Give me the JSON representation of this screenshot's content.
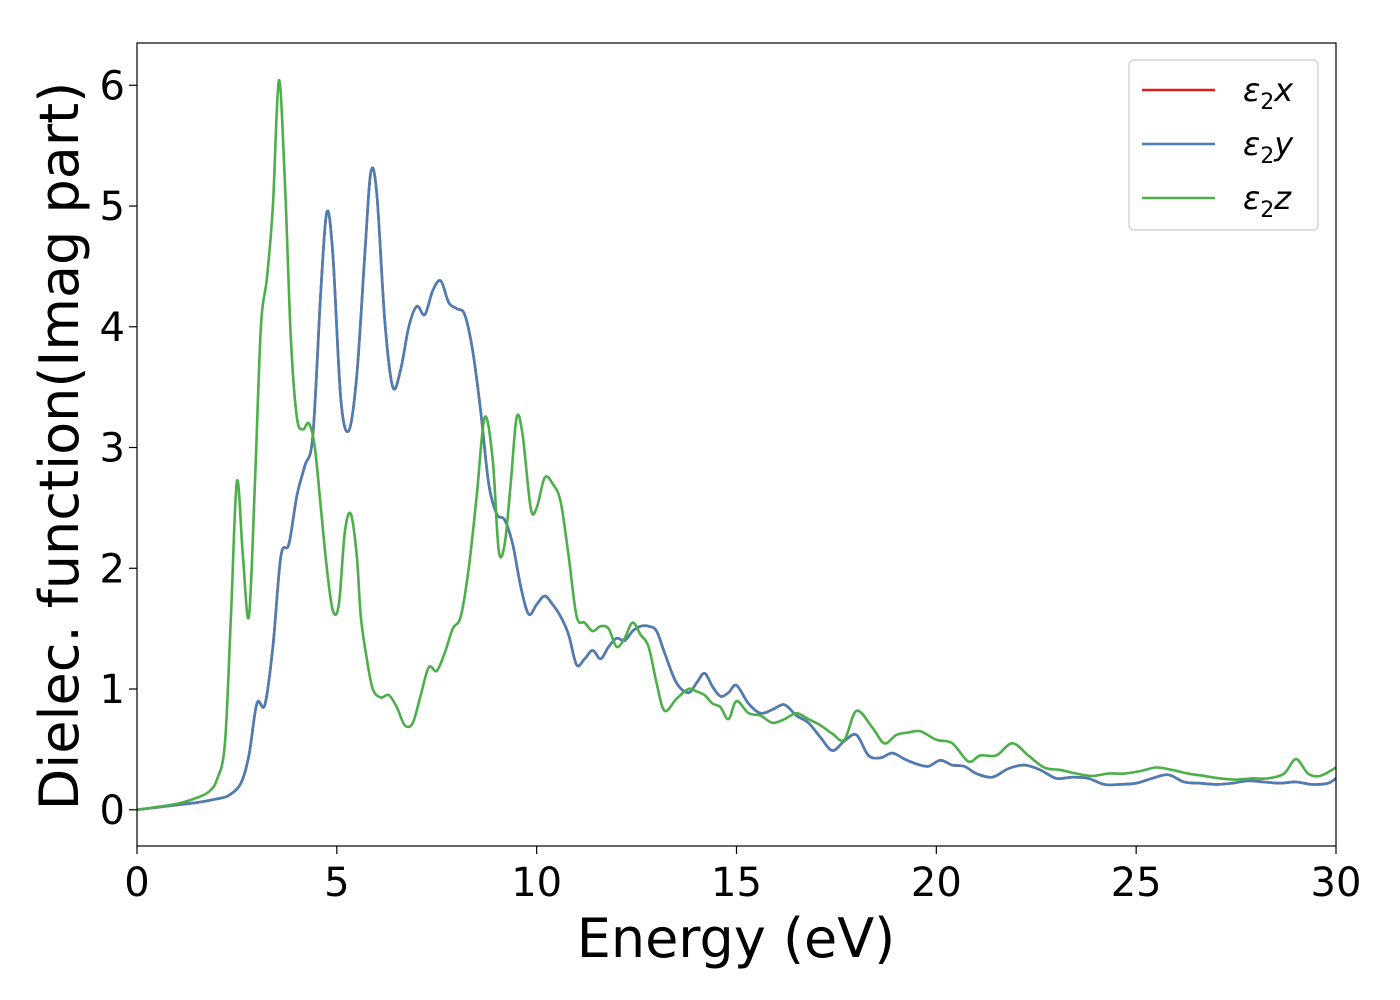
{
  "chart_data": {
    "type": "line",
    "xlabel": "Energy (eV)",
    "ylabel": "Dielec. function(Imag part)",
    "xlim": [
      0,
      30
    ],
    "ylim": [
      -0.3,
      6.35
    ],
    "x_ticks": [
      0,
      5,
      10,
      15,
      20,
      25,
      30
    ],
    "y_ticks": [
      0,
      1,
      2,
      3,
      4,
      5,
      6
    ],
    "grid": false,
    "legend_position": "top-right",
    "series": [
      {
        "name": "ε2x",
        "symbol": "ε",
        "sub": "2",
        "axis": "x",
        "color": "#e41a1c",
        "x": [
          0,
          1,
          1.5,
          2,
          2.3,
          2.6,
          2.8,
          3.0,
          3.2,
          3.4,
          3.6,
          3.8,
          4.0,
          4.2,
          4.4,
          4.6,
          4.75,
          4.9,
          5.1,
          5.3,
          5.5,
          5.7,
          5.85,
          6.0,
          6.2,
          6.4,
          6.6,
          6.8,
          7.0,
          7.2,
          7.4,
          7.6,
          7.8,
          8.0,
          8.2,
          8.4,
          8.6,
          8.8,
          9.0,
          9.2,
          9.4,
          9.6,
          9.8,
          10.0,
          10.2,
          10.4,
          10.6,
          10.8,
          11.0,
          11.2,
          11.4,
          11.6,
          11.8,
          12.0,
          12.2,
          12.4,
          12.6,
          12.8,
          13.0,
          13.2,
          13.5,
          13.8,
          14.0,
          14.2,
          14.4,
          14.6,
          14.8,
          15.0,
          15.3,
          15.6,
          15.9,
          16.2,
          16.5,
          16.8,
          17.1,
          17.4,
          17.7,
          18.0,
          18.3,
          18.6,
          18.9,
          19.2,
          19.5,
          19.8,
          20.1,
          20.4,
          20.7,
          21.0,
          21.4,
          21.8,
          22.2,
          22.6,
          23.0,
          23.4,
          23.8,
          24.2,
          24.6,
          25.0,
          25.4,
          25.8,
          26.2,
          26.6,
          27.0,
          27.4,
          27.8,
          28.2,
          28.6,
          29.0,
          29.4,
          29.8,
          30.0
        ],
        "values": [
          0,
          0.04,
          0.06,
          0.09,
          0.12,
          0.22,
          0.45,
          0.88,
          0.87,
          1.35,
          2.1,
          2.2,
          2.6,
          2.85,
          3.1,
          4.3,
          4.95,
          4.6,
          3.4,
          3.14,
          3.6,
          4.6,
          5.28,
          5.1,
          4.05,
          3.5,
          3.65,
          4.0,
          4.17,
          4.1,
          4.3,
          4.38,
          4.2,
          4.15,
          4.1,
          3.8,
          3.3,
          2.7,
          2.45,
          2.4,
          2.2,
          1.85,
          1.62,
          1.7,
          1.77,
          1.7,
          1.6,
          1.45,
          1.2,
          1.25,
          1.32,
          1.25,
          1.35,
          1.42,
          1.4,
          1.48,
          1.52,
          1.52,
          1.48,
          1.3,
          1.05,
          0.97,
          1.05,
          1.13,
          1.02,
          0.94,
          0.97,
          1.03,
          0.88,
          0.8,
          0.83,
          0.87,
          0.78,
          0.72,
          0.6,
          0.49,
          0.57,
          0.62,
          0.45,
          0.43,
          0.47,
          0.42,
          0.38,
          0.36,
          0.41,
          0.37,
          0.36,
          0.3,
          0.27,
          0.34,
          0.37,
          0.33,
          0.26,
          0.27,
          0.26,
          0.21,
          0.21,
          0.22,
          0.26,
          0.29,
          0.23,
          0.22,
          0.21,
          0.22,
          0.24,
          0.23,
          0.22,
          0.23,
          0.21,
          0.22,
          0.26
        ]
      },
      {
        "name": "ε2y",
        "symbol": "ε",
        "sub": "2",
        "axis": "y",
        "color": "#4a7fb5",
        "x": [
          0,
          1,
          1.5,
          2,
          2.3,
          2.6,
          2.8,
          3.0,
          3.2,
          3.4,
          3.6,
          3.8,
          4.0,
          4.2,
          4.4,
          4.6,
          4.75,
          4.9,
          5.1,
          5.3,
          5.5,
          5.7,
          5.85,
          6.0,
          6.2,
          6.4,
          6.6,
          6.8,
          7.0,
          7.2,
          7.4,
          7.6,
          7.8,
          8.0,
          8.2,
          8.4,
          8.6,
          8.8,
          9.0,
          9.2,
          9.4,
          9.6,
          9.8,
          10.0,
          10.2,
          10.4,
          10.6,
          10.8,
          11.0,
          11.2,
          11.4,
          11.6,
          11.8,
          12.0,
          12.2,
          12.4,
          12.6,
          12.8,
          13.0,
          13.2,
          13.5,
          13.8,
          14.0,
          14.2,
          14.4,
          14.6,
          14.8,
          15.0,
          15.3,
          15.6,
          15.9,
          16.2,
          16.5,
          16.8,
          17.1,
          17.4,
          17.7,
          18.0,
          18.3,
          18.6,
          18.9,
          19.2,
          19.5,
          19.8,
          20.1,
          20.4,
          20.7,
          21.0,
          21.4,
          21.8,
          22.2,
          22.6,
          23.0,
          23.4,
          23.8,
          24.2,
          24.6,
          25.0,
          25.4,
          25.8,
          26.2,
          26.6,
          27.0,
          27.4,
          27.8,
          28.2,
          28.6,
          29.0,
          29.4,
          29.8,
          30.0
        ],
        "values": [
          0,
          0.04,
          0.06,
          0.09,
          0.12,
          0.22,
          0.45,
          0.88,
          0.87,
          1.35,
          2.1,
          2.2,
          2.6,
          2.85,
          3.1,
          4.3,
          4.95,
          4.6,
          3.4,
          3.14,
          3.6,
          4.6,
          5.28,
          5.1,
          4.05,
          3.5,
          3.65,
          4.0,
          4.17,
          4.1,
          4.3,
          4.38,
          4.2,
          4.15,
          4.1,
          3.8,
          3.3,
          2.7,
          2.45,
          2.4,
          2.2,
          1.85,
          1.62,
          1.7,
          1.77,
          1.7,
          1.6,
          1.45,
          1.2,
          1.25,
          1.32,
          1.25,
          1.35,
          1.42,
          1.4,
          1.48,
          1.52,
          1.52,
          1.48,
          1.3,
          1.05,
          0.97,
          1.05,
          1.13,
          1.02,
          0.94,
          0.97,
          1.03,
          0.88,
          0.8,
          0.83,
          0.87,
          0.78,
          0.72,
          0.6,
          0.49,
          0.57,
          0.62,
          0.45,
          0.43,
          0.47,
          0.42,
          0.38,
          0.36,
          0.41,
          0.37,
          0.36,
          0.3,
          0.27,
          0.34,
          0.37,
          0.33,
          0.26,
          0.27,
          0.26,
          0.21,
          0.21,
          0.22,
          0.26,
          0.29,
          0.23,
          0.22,
          0.21,
          0.22,
          0.24,
          0.23,
          0.22,
          0.23,
          0.21,
          0.22,
          0.26
        ]
      },
      {
        "name": "ε2z",
        "symbol": "ε",
        "sub": "2",
        "axis": "z",
        "color": "#4daf4a",
        "x": [
          0,
          1,
          1.5,
          1.8,
          2.0,
          2.2,
          2.35,
          2.5,
          2.65,
          2.8,
          2.95,
          3.1,
          3.25,
          3.4,
          3.55,
          3.7,
          3.85,
          4.0,
          4.15,
          4.3,
          4.45,
          4.6,
          4.75,
          4.9,
          5.05,
          5.2,
          5.35,
          5.5,
          5.6,
          5.75,
          5.9,
          6.1,
          6.3,
          6.5,
          6.7,
          6.9,
          7.1,
          7.3,
          7.5,
          7.7,
          7.9,
          8.1,
          8.3,
          8.5,
          8.7,
          8.9,
          9.05,
          9.2,
          9.35,
          9.5,
          9.65,
          9.85,
          10.0,
          10.2,
          10.4,
          10.6,
          10.8,
          11.0,
          11.2,
          11.4,
          11.6,
          11.8,
          12.0,
          12.2,
          12.4,
          12.6,
          12.8,
          13.0,
          13.2,
          13.5,
          13.8,
          14.0,
          14.2,
          14.4,
          14.6,
          14.8,
          15.0,
          15.3,
          15.6,
          15.9,
          16.2,
          16.5,
          16.8,
          17.1,
          17.4,
          17.7,
          18.0,
          18.4,
          18.7,
          19.0,
          19.3,
          19.6,
          20.0,
          20.4,
          20.8,
          21.1,
          21.5,
          21.9,
          22.3,
          22.7,
          23.1,
          23.5,
          23.9,
          24.3,
          24.7,
          25.1,
          25.5,
          25.9,
          26.3,
          26.7,
          27.1,
          27.5,
          27.9,
          28.3,
          28.7,
          29.0,
          29.3,
          29.6,
          30.0
        ],
        "values": [
          0,
          0.05,
          0.1,
          0.15,
          0.25,
          0.55,
          1.6,
          2.72,
          2.1,
          1.6,
          2.7,
          4.0,
          4.4,
          5.0,
          6.04,
          5.2,
          3.9,
          3.25,
          3.15,
          3.2,
          3.0,
          2.5,
          2.0,
          1.65,
          1.7,
          2.3,
          2.45,
          2.1,
          1.6,
          1.25,
          1.0,
          0.93,
          0.95,
          0.85,
          0.7,
          0.72,
          0.95,
          1.18,
          1.15,
          1.3,
          1.5,
          1.6,
          2.0,
          2.6,
          3.25,
          2.9,
          2.15,
          2.2,
          2.7,
          3.25,
          3.1,
          2.5,
          2.5,
          2.75,
          2.7,
          2.55,
          2.1,
          1.6,
          1.55,
          1.48,
          1.52,
          1.5,
          1.35,
          1.42,
          1.55,
          1.45,
          1.35,
          1.05,
          0.82,
          0.92,
          1.0,
          0.98,
          0.95,
          0.88,
          0.85,
          0.75,
          0.9,
          0.8,
          0.78,
          0.72,
          0.75,
          0.8,
          0.75,
          0.7,
          0.63,
          0.58,
          0.82,
          0.68,
          0.55,
          0.62,
          0.64,
          0.65,
          0.58,
          0.55,
          0.4,
          0.45,
          0.45,
          0.55,
          0.45,
          0.35,
          0.33,
          0.3,
          0.28,
          0.3,
          0.3,
          0.32,
          0.35,
          0.33,
          0.3,
          0.28,
          0.26,
          0.25,
          0.26,
          0.26,
          0.3,
          0.42,
          0.3,
          0.28,
          0.35
        ]
      }
    ]
  }
}
